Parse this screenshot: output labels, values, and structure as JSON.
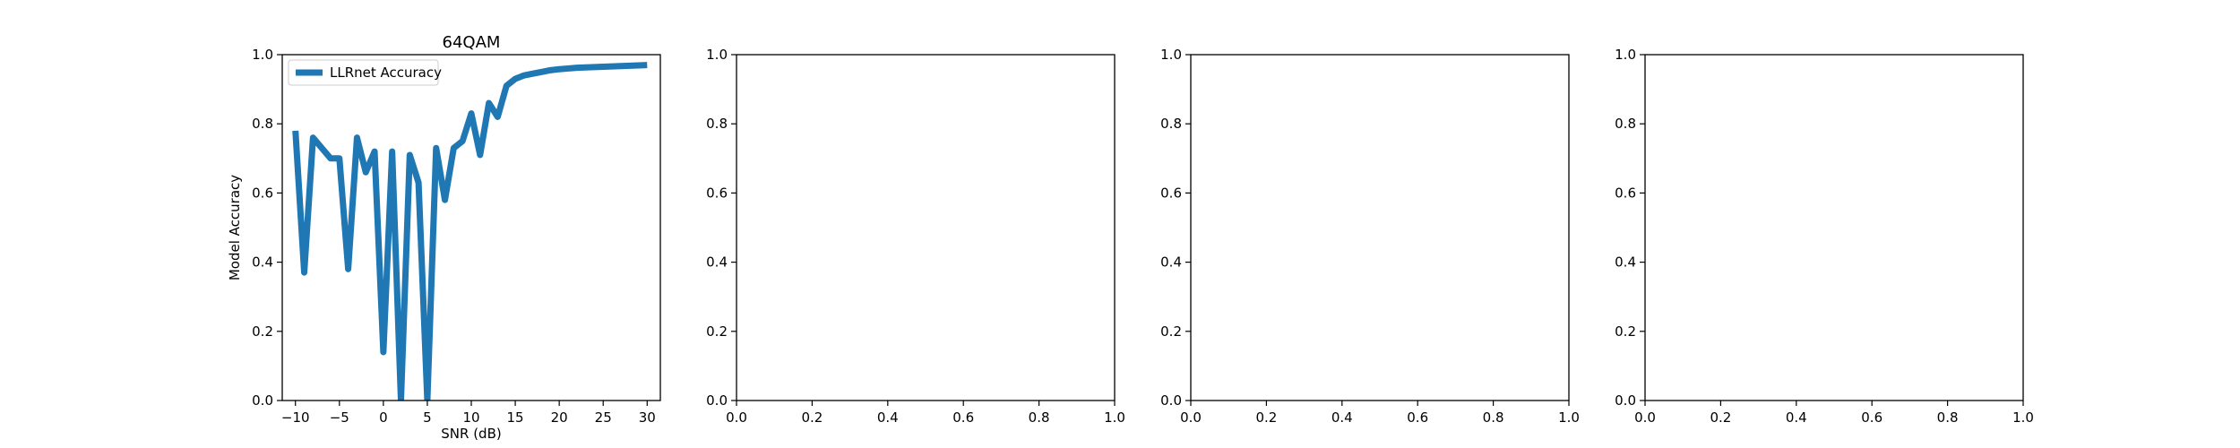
{
  "chart_data": [
    {
      "type": "line",
      "title": "64QAM",
      "xlabel": "SNR (dB)",
      "ylabel": "Model Accuracy",
      "xlim": [
        -11.5,
        31.5
      ],
      "ylim": [
        0,
        1
      ],
      "xticks": [
        -10,
        -5,
        0,
        5,
        10,
        15,
        20,
        25,
        30
      ],
      "xtick_labels": [
        "−10",
        "−5",
        "0",
        "5",
        "10",
        "15",
        "20",
        "25",
        "30"
      ],
      "yticks": [
        0,
        0.2,
        0.4,
        0.6,
        0.8,
        1.0
      ],
      "ytick_labels": [
        "0.0",
        "0.2",
        "0.4",
        "0.6",
        "0.8",
        "1.0"
      ],
      "grid": false,
      "legend": "top-left",
      "color": "#1f77b4",
      "series": [
        {
          "name": "LLRnet Accuracy",
          "x": [
            -10,
            -9,
            -8,
            -7,
            -6,
            -5,
            -4,
            -3,
            -2,
            -1,
            0,
            1,
            2,
            3,
            4,
            5,
            6,
            7,
            8,
            9,
            10,
            11,
            12,
            13,
            14,
            15,
            16,
            17,
            18,
            19,
            20,
            21,
            22,
            23,
            24,
            25,
            26,
            27,
            28,
            29,
            30
          ],
          "y": [
            0.78,
            0.37,
            0.76,
            0.73,
            0.7,
            0.7,
            0.38,
            0.76,
            0.66,
            0.72,
            0.14,
            0.72,
            0.0,
            0.71,
            0.63,
            0.0,
            0.73,
            0.58,
            0.73,
            0.75,
            0.83,
            0.71,
            0.86,
            0.82,
            0.91,
            0.93,
            0.94,
            0.945,
            0.95,
            0.955,
            0.958,
            0.96,
            0.962,
            0.963,
            0.964,
            0.965,
            0.966,
            0.967,
            0.968,
            0.969,
            0.97
          ]
        }
      ]
    },
    {
      "type": "line",
      "title": "",
      "xlabel": "",
      "ylabel": "",
      "xlim": [
        0,
        1
      ],
      "ylim": [
        0,
        1
      ],
      "xticks": [
        0,
        0.2,
        0.4,
        0.6,
        0.8,
        1.0
      ],
      "xtick_labels": [
        "0.0",
        "0.2",
        "0.4",
        "0.6",
        "0.8",
        "1.0"
      ],
      "yticks": [
        0,
        0.2,
        0.4,
        0.6,
        0.8,
        1.0
      ],
      "ytick_labels": [
        "0.0",
        "0.2",
        "0.4",
        "0.6",
        "0.8",
        "1.0"
      ],
      "grid": false,
      "series": []
    },
    {
      "type": "line",
      "title": "",
      "xlabel": "",
      "ylabel": "",
      "xlim": [
        0,
        1
      ],
      "ylim": [
        0,
        1
      ],
      "xticks": [
        0,
        0.2,
        0.4,
        0.6,
        0.8,
        1.0
      ],
      "xtick_labels": [
        "0.0",
        "0.2",
        "0.4",
        "0.6",
        "0.8",
        "1.0"
      ],
      "yticks": [
        0,
        0.2,
        0.4,
        0.6,
        0.8,
        1.0
      ],
      "ytick_labels": [
        "0.0",
        "0.2",
        "0.4",
        "0.6",
        "0.8",
        "1.0"
      ],
      "grid": false,
      "series": []
    },
    {
      "type": "line",
      "title": "",
      "xlabel": "",
      "ylabel": "",
      "xlim": [
        0,
        1
      ],
      "ylim": [
        0,
        1
      ],
      "xticks": [
        0,
        0.2,
        0.4,
        0.6,
        0.8,
        1.0
      ],
      "xtick_labels": [
        "0.0",
        "0.2",
        "0.4",
        "0.6",
        "0.8",
        "1.0"
      ],
      "yticks": [
        0,
        0.2,
        0.4,
        0.6,
        0.8,
        1.0
      ],
      "ytick_labels": [
        "0.0",
        "0.2",
        "0.4",
        "0.6",
        "0.8",
        "1.0"
      ],
      "grid": false,
      "series": []
    }
  ]
}
